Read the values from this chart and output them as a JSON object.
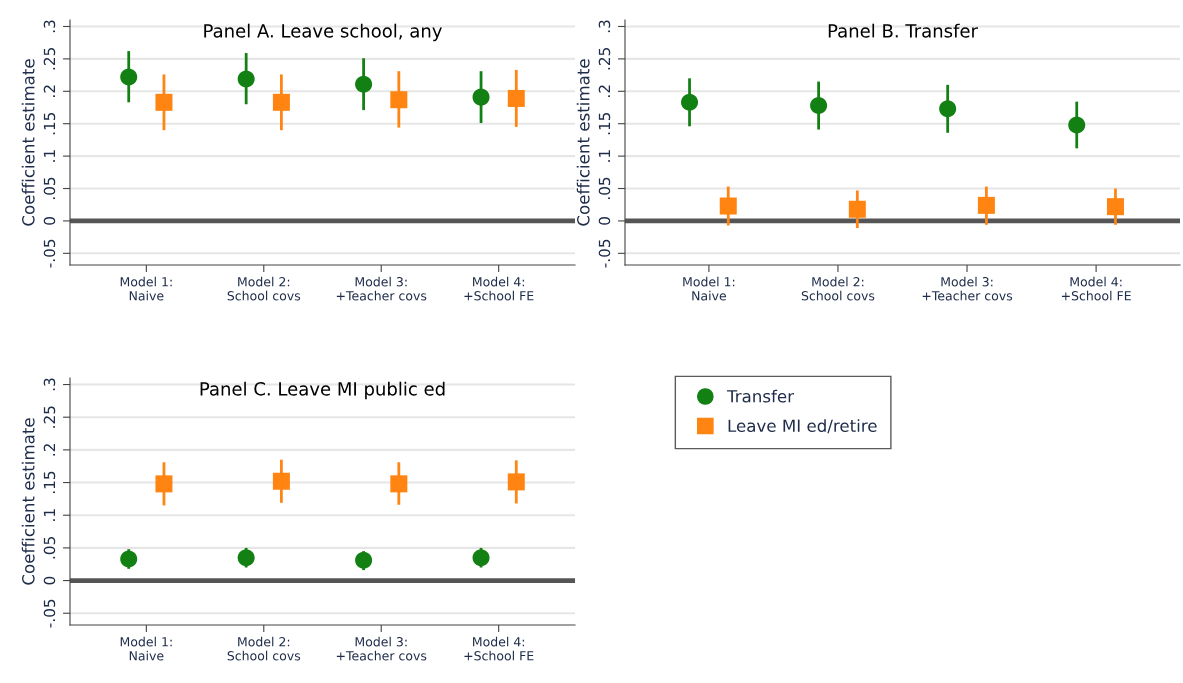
{
  "chart_data": [
    {
      "type": "scatter",
      "title": "Panel A. Leave school, any",
      "ylabel": "Coefficient estimate",
      "categories": [
        "Model 1:\nNaive",
        "Model 2:\nSchool covs",
        "Model 3:\n+Teacher covs",
        "Model 4:\n+School FE"
      ],
      "series": [
        {
          "name": "Transfer",
          "color": "#138013",
          "marker": "circle",
          "values": [
            0.222,
            0.219,
            0.211,
            0.191
          ],
          "errors": [
            [
              0.183,
              0.262
            ],
            [
              0.18,
              0.259
            ],
            [
              0.171,
              0.251
            ],
            [
              0.151,
              0.231
            ]
          ]
        },
        {
          "name": "Leave MI ed/retire",
          "color": "#ff8412",
          "marker": "square",
          "values": [
            0.183,
            0.183,
            0.187,
            0.189
          ],
          "errors": [
            [
              0.14,
              0.226
            ],
            [
              0.14,
              0.226
            ],
            [
              0.144,
              0.231
            ],
            [
              0.145,
              0.233
            ]
          ]
        }
      ],
      "ylim": [
        -0.068,
        0.31
      ],
      "yticks": [
        {
          "value": -0.05,
          "label": "-.05"
        },
        0,
        {
          "value": 0.05,
          "label": ".05"
        },
        {
          "value": 0.1,
          "label": ".1"
        },
        {
          "value": 0.15,
          "label": ".15"
        },
        {
          "value": 0.2,
          "label": ".2"
        },
        {
          "value": 0.25,
          "label": ".25"
        },
        {
          "value": 0.3,
          "label": ".3"
        }
      ],
      "ref_lines": [
        {
          "axis": "y",
          "value": 0,
          "color": "#555555"
        }
      ],
      "grid": "y",
      "legend": "bottom right"
    },
    {
      "type": "scatter",
      "title": "Panel B. Transfer",
      "ylabel": "Coefficient estimate",
      "categories": [
        "Model 1:\nNaive",
        "Model 2:\nSchool covs",
        "Model 3:\n+Teacher covs",
        "Model 4:\n+School FE"
      ],
      "series": [
        {
          "color": "#138013",
          "marker": "circle",
          "values": [
            0.183,
            0.178,
            0.173,
            0.148
          ],
          "errors": [
            [
              0.146,
              0.22
            ],
            [
              0.141,
              0.215
            ],
            [
              0.136,
              0.21
            ],
            [
              0.112,
              0.184
            ]
          ]
        },
        {
          "color": "#ff8412",
          "marker": "square",
          "values": [
            0.023,
            0.018,
            0.024,
            0.022
          ],
          "errors": [
            [
              -0.007,
              0.053
            ],
            [
              -0.011,
              0.047
            ],
            [
              -0.006,
              0.053
            ],
            [
              -0.006,
              0.05
            ]
          ]
        }
      ],
      "ylim": [
        -0.068,
        0.31
      ],
      "yticks": [
        {
          "value": -0.05,
          "label": "-.05"
        },
        0,
        {
          "value": 0.05,
          "label": ".05"
        },
        {
          "value": 0.1,
          "label": ".1"
        },
        {
          "value": 0.15,
          "label": ".15"
        },
        {
          "value": 0.2,
          "label": ".2"
        },
        {
          "value": 0.25,
          "label": ".25"
        },
        {
          "value": 0.3,
          "label": ".3"
        }
      ],
      "ref_lines": [
        {
          "axis": "y",
          "value": 0,
          "color": "#555555"
        }
      ],
      "grid": "y",
      "legend": false
    },
    {
      "type": "scatter",
      "title": "Panel C. Leave MI public ed",
      "ylabel": "Coefficient estimate",
      "categories": [
        "Model 1:\nNaive",
        "Model 2:\nSchool covs",
        "Model 3:\n+Teacher covs",
        "Model 4:\n+School FE"
      ],
      "series": [
        {
          "color": "#138013",
          "marker": "circle",
          "values": [
            0.033,
            0.035,
            0.031,
            0.035
          ],
          "errors": [
            [
              0.018,
              0.048
            ],
            [
              0.02,
              0.05
            ],
            [
              0.016,
              0.045
            ],
            [
              0.02,
              0.05
            ]
          ]
        },
        {
          "color": "#ff8412",
          "marker": "square",
          "values": [
            0.148,
            0.152,
            0.148,
            0.151
          ],
          "errors": [
            [
              0.115,
              0.181
            ],
            [
              0.119,
              0.185
            ],
            [
              0.116,
              0.181
            ],
            [
              0.118,
              0.184
            ]
          ]
        }
      ],
      "ylim": [
        -0.068,
        0.31
      ],
      "yticks": [
        {
          "value": -0.05,
          "label": "-.05"
        },
        0,
        {
          "value": 0.05,
          "label": ".05"
        },
        {
          "value": 0.1,
          "label": ".1"
        },
        {
          "value": 0.15,
          "label": ".15"
        },
        {
          "value": 0.2,
          "label": ".2"
        },
        {
          "value": 0.25,
          "label": ".25"
        },
        {
          "value": 0.3,
          "label": ".3"
        }
      ],
      "ref_lines": [
        {
          "axis": "y",
          "value": 0,
          "color": "#555555"
        }
      ],
      "grid": "y",
      "legend": false
    }
  ]
}
